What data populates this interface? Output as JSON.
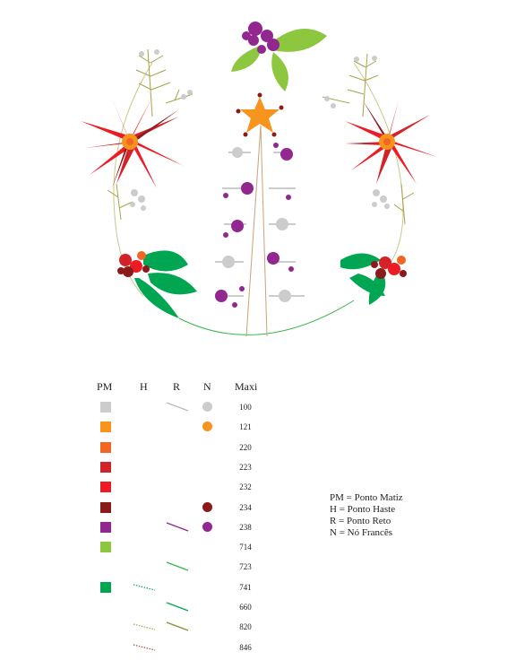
{
  "legend": {
    "headers": {
      "pm": "PM",
      "h": "H",
      "r": "R",
      "n": "N",
      "maxi": "Maxi"
    },
    "rows": [
      {
        "code": "100",
        "pm": "#cccccc",
        "r": "#bbbbbb",
        "r_style": "solid",
        "n": "#cccccc"
      },
      {
        "code": "121",
        "pm": "#f7941d",
        "n": "#f7941d"
      },
      {
        "code": "220",
        "pm": "#f26522"
      },
      {
        "code": "223",
        "pm": "#d2232a"
      },
      {
        "code": "232",
        "pm": "#ed1c24"
      },
      {
        "code": "234",
        "pm": "#8b1a1a",
        "n": "#8b1a1a"
      },
      {
        "code": "238",
        "pm": "#92278f",
        "r": "#92278f",
        "r_style": "solid",
        "n": "#92278f"
      },
      {
        "code": "714",
        "pm": "#8dc63f"
      },
      {
        "code": "723",
        "r": "#39b54a",
        "r_style": "solid"
      },
      {
        "code": "741",
        "pm": "#00a651",
        "h": "#00a651"
      },
      {
        "code": "660",
        "r": "#00a651",
        "r_style": "solid"
      },
      {
        "code": "820",
        "h": "#a6a34a",
        "r": "#8c8c2e",
        "r_style": "solid"
      },
      {
        "code": "846",
        "h": "#a0522d"
      }
    ]
  },
  "key": {
    "lines": [
      "PM = Ponto Matiz",
      "H = Ponto Haste",
      "R = Ponto Reto",
      "N = Nó Francês"
    ]
  }
}
